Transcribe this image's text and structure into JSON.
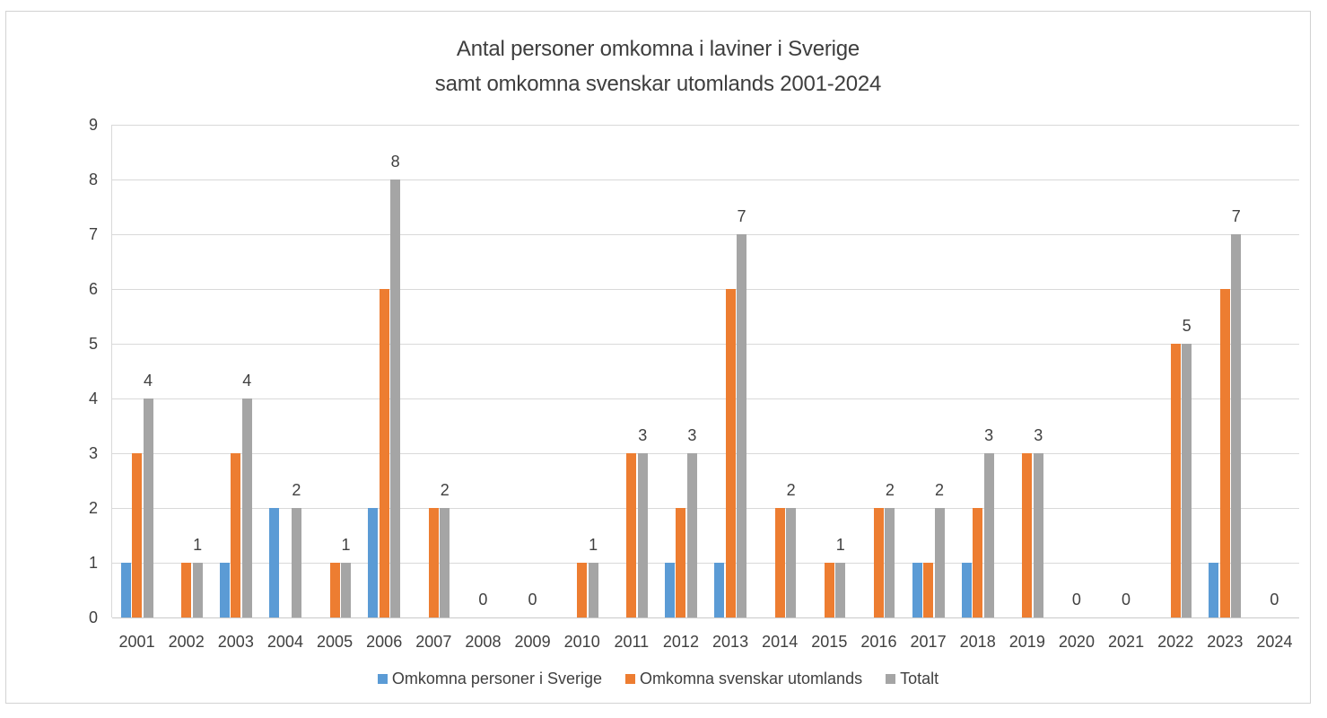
{
  "title": {
    "line1": "Antal personer omkomna i laviner i Sverige",
    "line2": "samt omkomna svenskar utomlands 2001-2024"
  },
  "chart_data": {
    "type": "bar",
    "title": "Antal personer omkomna i laviner i Sverige samt omkomna svenskar utomlands 2001-2024",
    "categories": [
      "2001",
      "2002",
      "2003",
      "2004",
      "2005",
      "2006",
      "2007",
      "2008",
      "2009",
      "2010",
      "2011",
      "2012",
      "2013",
      "2014",
      "2015",
      "2016",
      "2017",
      "2018",
      "2019",
      "2020",
      "2021",
      "2022",
      "2023",
      "2024"
    ],
    "series": [
      {
        "name": "Omkomna personer  i Sverige",
        "color": "#5B9BD5",
        "values": [
          1,
          0,
          1,
          2,
          0,
          2,
          0,
          0,
          0,
          0,
          0,
          1,
          1,
          0,
          0,
          0,
          1,
          1,
          0,
          0,
          0,
          0,
          1,
          0
        ]
      },
      {
        "name": "Omkomna svenskar utomlands",
        "color": "#ED7D31",
        "values": [
          3,
          1,
          3,
          0,
          1,
          6,
          2,
          0,
          0,
          1,
          3,
          2,
          6,
          2,
          1,
          2,
          1,
          2,
          3,
          0,
          0,
          5,
          6,
          0
        ]
      },
      {
        "name": "Totalt",
        "color": "#A5A5A5",
        "values": [
          4,
          1,
          4,
          2,
          1,
          8,
          2,
          0,
          0,
          1,
          3,
          3,
          7,
          2,
          1,
          2,
          2,
          3,
          3,
          0,
          0,
          5,
          7,
          0
        ]
      }
    ],
    "totals_labels": [
      "4",
      "1",
      "4",
      "2",
      "1",
      "8",
      "2",
      "0",
      "0",
      "1",
      "3",
      "3",
      "7",
      "2",
      "1",
      "2",
      "2",
      "3",
      "3",
      "0",
      "0",
      "5",
      "7",
      "0"
    ],
    "y_ticks": [
      0,
      1,
      2,
      3,
      4,
      5,
      6,
      7,
      8,
      9
    ],
    "ylim": [
      0,
      9
    ],
    "grid": true,
    "legend_position": "bottom"
  },
  "colors": {
    "grid": "#D9D9D9",
    "baseline": "#C9C9C9",
    "text": "#404040",
    "title_text": "#3E3E3E",
    "frame_border": "#D2D2D2",
    "background": "#FFFFFF"
  }
}
